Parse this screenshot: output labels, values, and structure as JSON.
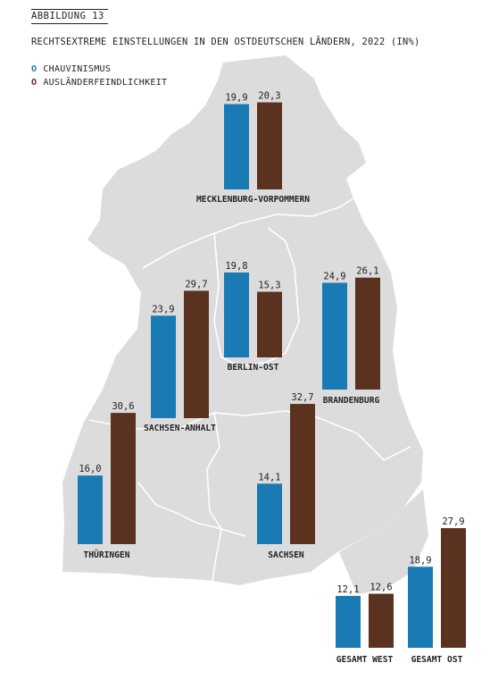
{
  "figure_label": "ABBILDUNG 13",
  "colors": {
    "chauvinismus": "#1a7ab4",
    "auslaenderfeindlichkeit": "#5b3120",
    "map_fill": "#dcdcdc",
    "border": "#ffffff"
  },
  "legend": [
    {
      "mark": "O",
      "label": "CHAUVINISMUS",
      "color_key": "chauvinismus",
      "icon": "circle-marker"
    },
    {
      "mark": "O",
      "label": "AUSLÄNDERFEINDLICHKEIT",
      "color_key": "auslaenderfeindlichkeit",
      "icon": "circle-marker"
    }
  ],
  "chart_data": {
    "type": "bar",
    "title": "RECHTSEXTREME EINSTELLUNGEN IN DEN OSTDEUTSCHEN LÄNDERN, 2022 (IN%)",
    "series": [
      {
        "name": "CHAUVINISMUS",
        "values": [
          19.9,
          19.8,
          24.9,
          23.9,
          14.1,
          16.0,
          12.1,
          18.9
        ]
      },
      {
        "name": "AUSLÄNDERFEINDLICHKEIT",
        "values": [
          20.3,
          15.3,
          26.1,
          29.7,
          32.7,
          30.6,
          12.6,
          27.9
        ]
      }
    ],
    "groups": [
      {
        "label": "MECKLENBURG-VORPOMMERN",
        "values": [
          19.9,
          20.3
        ],
        "value_labels": [
          "19,9",
          "20,3"
        ]
      },
      {
        "label": "BERLIN-OST",
        "values": [
          19.8,
          15.3
        ],
        "value_labels": [
          "19,8",
          "15,3"
        ]
      },
      {
        "label": "BRANDENBURG",
        "values": [
          24.9,
          26.1
        ],
        "value_labels": [
          "24,9",
          "26,1"
        ]
      },
      {
        "label": "SACHSEN-ANHALT",
        "values": [
          23.9,
          29.7
        ],
        "value_labels": [
          "23,9",
          "29,7"
        ]
      },
      {
        "label": "SACHSEN",
        "values": [
          14.1,
          32.7
        ],
        "value_labels": [
          "14,1",
          "32,7"
        ]
      },
      {
        "label": "THÜRINGEN",
        "values": [
          16.0,
          30.6
        ],
        "value_labels": [
          "16,0",
          "30,6"
        ]
      },
      {
        "label": "GESAMT WEST",
        "values": [
          12.1,
          12.6
        ],
        "value_labels": [
          "12,1",
          "12,6"
        ]
      },
      {
        "label": "GESAMT OST",
        "values": [
          18.9,
          27.9
        ],
        "value_labels": [
          "18,9",
          "27,9"
        ]
      }
    ]
  }
}
